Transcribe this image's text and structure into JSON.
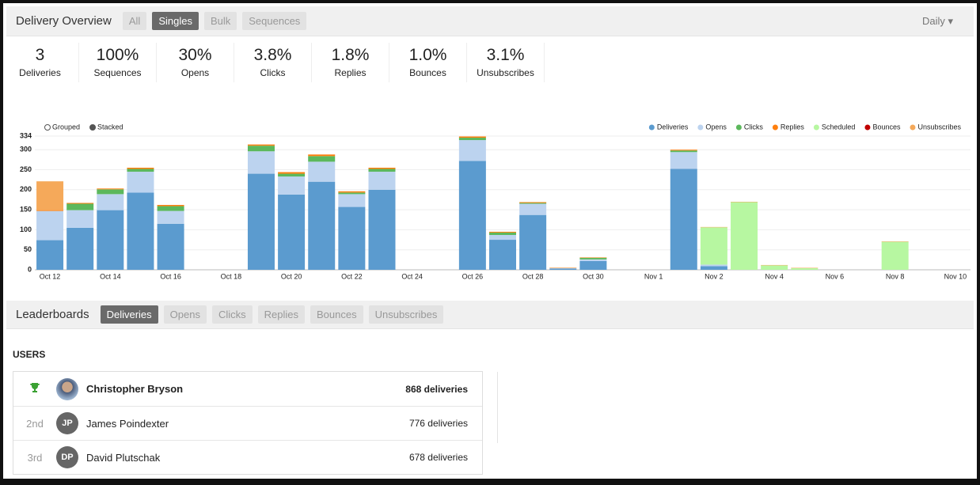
{
  "header": {
    "title": "Delivery Overview",
    "tabs": [
      {
        "label": "All",
        "active": false
      },
      {
        "label": "Singles",
        "active": true
      },
      {
        "label": "Bulk",
        "active": false
      },
      {
        "label": "Sequences",
        "active": false
      }
    ],
    "period": "Daily"
  },
  "stats": [
    {
      "value": "3",
      "label": "Deliveries"
    },
    {
      "value": "100%",
      "label": "Sequences"
    },
    {
      "value": "30%",
      "label": "Opens"
    },
    {
      "value": "3.8%",
      "label": "Clicks"
    },
    {
      "value": "1.8%",
      "label": "Replies"
    },
    {
      "value": "1.0%",
      "label": "Bounces"
    },
    {
      "value": "3.1%",
      "label": "Unsubscribes"
    }
  ],
  "chart_data": {
    "type": "bar",
    "stacked": true,
    "grid": true,
    "legend": "top-right",
    "modes": [
      {
        "label": "Grouped",
        "selected": false
      },
      {
        "label": "Stacked",
        "selected": true
      }
    ],
    "categories": [
      "Oct 12",
      null,
      "Oct 14",
      null,
      "Oct 16",
      null,
      "Oct 18",
      null,
      "Oct 20",
      null,
      "Oct 22",
      null,
      "Oct 24",
      null,
      "Oct 26",
      null,
      "Oct 28",
      null,
      "Oct 30",
      null,
      "Nov 1",
      null,
      "Nov 2",
      null,
      "Nov 4",
      null,
      "Nov 6",
      null,
      "Nov 8",
      null,
      "Nov 10"
    ],
    "series": [
      {
        "name": "Deliveries",
        "color": "#5b9bcf",
        "values": [
          74,
          105,
          149,
          193,
          115,
          0,
          0,
          240,
          188,
          220,
          157,
          200,
          0,
          0,
          272,
          75,
          137,
          3,
          22,
          0,
          0,
          252,
          9,
          0,
          0,
          0,
          0,
          0,
          0,
          0,
          0
        ]
      },
      {
        "name": "Opens",
        "color": "#bcd3ef",
        "values": [
          73,
          44,
          40,
          52,
          32,
          0,
          0,
          56,
          45,
          50,
          32,
          45,
          0,
          0,
          52,
          12,
          28,
          1,
          4,
          0,
          0,
          42,
          4,
          0,
          0,
          0,
          0,
          0,
          0,
          0,
          0
        ]
      },
      {
        "name": "Clicks",
        "color": "#5cb85c",
        "values": [
          0,
          16,
          12,
          7,
          12,
          0,
          0,
          14,
          7,
          14,
          4,
          7,
          0,
          0,
          6,
          6,
          2,
          0,
          4,
          0,
          0,
          4,
          0,
          0,
          0,
          0,
          0,
          0,
          0,
          0,
          0
        ]
      },
      {
        "name": "Replies",
        "color": "#ff7f0e",
        "values": [
          2,
          2,
          2,
          3,
          3,
          0,
          0,
          3,
          4,
          4,
          3,
          3,
          0,
          0,
          3,
          2,
          2,
          1,
          1,
          0,
          0,
          2,
          0,
          0,
          0,
          0,
          0,
          0,
          0,
          0,
          0
        ]
      },
      {
        "name": "Scheduled",
        "color": "#b7f7a1",
        "values": [
          0,
          0,
          0,
          0,
          0,
          0,
          0,
          0,
          0,
          0,
          0,
          0,
          0,
          0,
          0,
          0,
          0,
          0,
          0,
          0,
          0,
          0,
          93,
          169,
          11,
          4,
          0,
          0,
          70,
          0,
          0
        ]
      },
      {
        "name": "Bounces",
        "color": "#c00000",
        "values": [
          0,
          0,
          0,
          0,
          0,
          0,
          0,
          0,
          0,
          0,
          0,
          0,
          0,
          0,
          0,
          0,
          0,
          0,
          0,
          0,
          0,
          0,
          0,
          0,
          0,
          0,
          0,
          0,
          0,
          0,
          0
        ]
      },
      {
        "name": "Unsubscribes",
        "color": "#f5a95a",
        "values": [
          72,
          0,
          0,
          0,
          0,
          0,
          0,
          0,
          0,
          0,
          0,
          0,
          0,
          0,
          0,
          0,
          0,
          0,
          0,
          0,
          0,
          0,
          1,
          1,
          1,
          1,
          0,
          0,
          1,
          0,
          0
        ]
      }
    ],
    "ylim": [
      0,
      334
    ],
    "yticks": [
      0,
      50,
      100,
      150,
      200,
      250,
      300,
      334
    ]
  },
  "leaderboards": {
    "title": "Leaderboards",
    "tabs": [
      {
        "label": "Deliveries",
        "active": true
      },
      {
        "label": "Opens",
        "active": false
      },
      {
        "label": "Clicks",
        "active": false
      },
      {
        "label": "Replies",
        "active": false
      },
      {
        "label": "Bounces",
        "active": false
      },
      {
        "label": "Unsubscribes",
        "active": false
      }
    ],
    "section": "USERS",
    "rows": [
      {
        "name": "Christopher Bryson",
        "count": "868 deliveries"
      },
      {
        "rank": "2nd",
        "initials": "JP",
        "name": "James Poindexter",
        "count": "776 deliveries"
      },
      {
        "rank": "3rd",
        "initials": "DP",
        "name": "David Plutschak",
        "count": "678 deliveries"
      }
    ]
  }
}
